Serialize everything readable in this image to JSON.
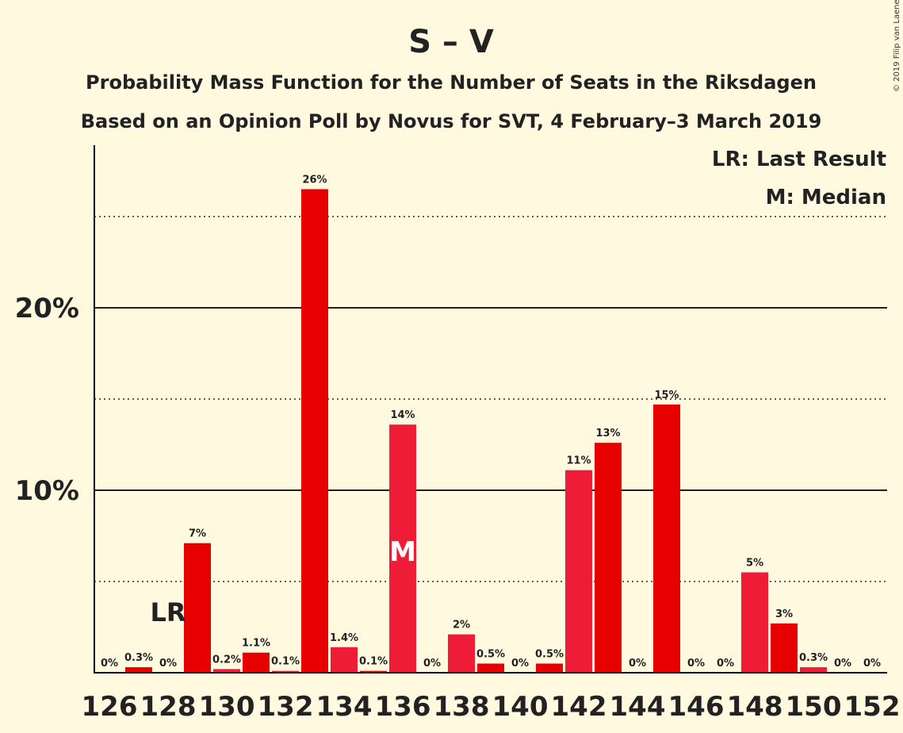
{
  "copyright": "© 2019 Filip van Laenen",
  "chart_data": {
    "type": "bar",
    "title": "S – V",
    "subtitle_1": "Probability Mass Function for the Number of Seats in the Riksdagen",
    "subtitle_2": "Based on an Opinion Poll by Novus for SVT, 4 February–3 March 2019",
    "xlabel": "",
    "ylabel": "",
    "x": [
      126,
      127,
      128,
      129,
      130,
      131,
      132,
      133,
      134,
      135,
      136,
      137,
      138,
      139,
      140,
      141,
      142,
      143,
      144,
      145,
      146,
      147,
      148,
      149,
      150,
      151,
      152
    ],
    "values": [
      0,
      0.3,
      0,
      7.1,
      0.2,
      1.1,
      0.1,
      26.5,
      1.4,
      0.1,
      13.6,
      0,
      2.1,
      0.5,
      0,
      0.5,
      11.1,
      12.6,
      0,
      14.7,
      0,
      0,
      5.5,
      2.7,
      0.3,
      0,
      0
    ],
    "data_labels": [
      "0%",
      "0.3%",
      "0%",
      "7%",
      "0.2%",
      "1.1%",
      "0.1%",
      "26%",
      "1.4%",
      "0.1%",
      "14%",
      "0%",
      "2%",
      "0.5%",
      "0%",
      "0.5%",
      "11%",
      "13%",
      "0%",
      "15%",
      "0%",
      "0%",
      "5%",
      "3%",
      "0.3%",
      "0%",
      "0%"
    ],
    "x_tick_labels": [
      "126",
      "128",
      "130",
      "132",
      "134",
      "136",
      "138",
      "140",
      "142",
      "144",
      "146",
      "148",
      "150",
      "152"
    ],
    "y_tick_labels": [
      "10%",
      "20%"
    ],
    "ylim": [
      0,
      29
    ],
    "grid": {
      "solid_major": [
        10,
        20
      ],
      "dotted_minor": [
        5,
        15,
        25
      ]
    },
    "last_result": 128,
    "median": 136,
    "legend": {
      "lr": "LR: Last Result",
      "m": "M: Median"
    },
    "markers": {
      "lr_text": "LR",
      "m_text": "M"
    },
    "colors": {
      "background": "#fff9e0",
      "bar_primary": "#e60000",
      "bar_alternate": "#ee1c36",
      "axis": "#000000",
      "text": "#222222"
    }
  }
}
